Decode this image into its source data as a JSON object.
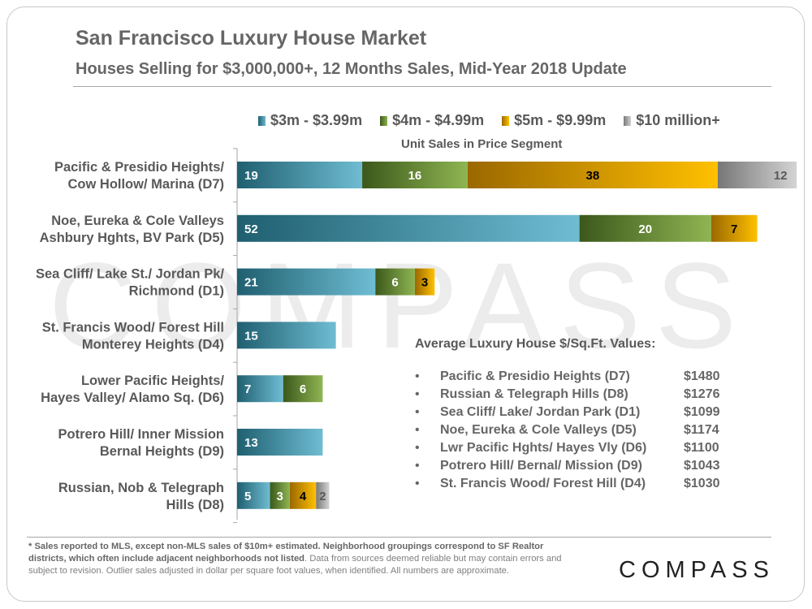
{
  "header": {
    "title": "San Francisco Luxury House Market",
    "subtitle": "Houses Selling for $3,000,000+, 12 Months Sales, Mid-Year 2018 Update"
  },
  "watermark": "COMPASS",
  "chart_data": {
    "type": "bar",
    "orientation": "horizontal",
    "stacked": true,
    "axis_title": "Unit Sales in Price Segment",
    "legend_position": "top",
    "categories": [
      [
        "Pacific & Presidio Heights/",
        "Cow Hollow/ Marina (D7)"
      ],
      [
        "Noe, Eureka & Cole Valleys",
        "Ashbury Hghts, BV Park (D5)"
      ],
      [
        "Sea Cliff/ Lake St./ Jordan Pk/",
        "Richmond (D1)"
      ],
      [
        "St. Francis Wood/ Forest Hill",
        "Monterey Heights (D4)"
      ],
      [
        "Lower Pacific Heights/",
        "Hayes Valley/ Alamo Sq. (D6)"
      ],
      [
        "Potrero Hill/ Inner Mission",
        "Bernal Heights (D9)"
      ],
      [
        "Russian, Nob & Telegraph",
        "Hills (D8)"
      ]
    ],
    "series": [
      {
        "name": "$3m - $3.99m",
        "values": [
          19,
          52,
          21,
          15,
          7,
          13,
          5
        ],
        "color": "#2e7a8e"
      },
      {
        "name": "$4m - $4.99m",
        "values": [
          16,
          20,
          6,
          0,
          6,
          0,
          3
        ],
        "color": "#5e8a2c"
      },
      {
        "name": "$5m - $9.99m",
        "values": [
          38,
          7,
          3,
          0,
          0,
          0,
          4
        ],
        "color": "#f2a700"
      },
      {
        "name": "$10 million+",
        "values": [
          12,
          0,
          0,
          0,
          0,
          0,
          2
        ],
        "color": "#8c8c8c"
      }
    ],
    "xlim": [
      0,
      83
    ],
    "grid": false
  },
  "avg_values": {
    "title": "Average Luxury House $/Sq.Ft. Values:",
    "bullet": "•",
    "items": [
      {
        "name": "Pacific & Presidio Heights (D7)",
        "value": "$1480"
      },
      {
        "name": "Russian & Telegraph Hills (D8)",
        "value": "$1276"
      },
      {
        "name": "Sea Cliff/ Lake/ Jordan Park (D1)",
        "value": "$1099"
      },
      {
        "name": "Noe, Eureka & Cole Valleys (D5)",
        "value": "$1174"
      },
      {
        "name": "Lwr Pacific Hghts/ Hayes Vly (D6)",
        "value": "$1100"
      },
      {
        "name": "Potrero Hill/ Bernal/ Mission (D9)",
        "value": "$1043"
      },
      {
        "name": "St. Francis Wood/ Forest Hill (D4)",
        "value": "$1030"
      }
    ]
  },
  "footnote": {
    "bold": "* Sales reported to MLS, except non-MLS sales of $10m+ estimated. Neighborhood groupings correspond to SF Realtor districts, which often include adjacent neighborhoods not listed",
    "rest": ". Data from sources deemed reliable but may contain errors and subject to revision. Outlier sales adjusted in dollar per square foot values, when identified. All numbers are approximate."
  },
  "logo": "COMPASS"
}
